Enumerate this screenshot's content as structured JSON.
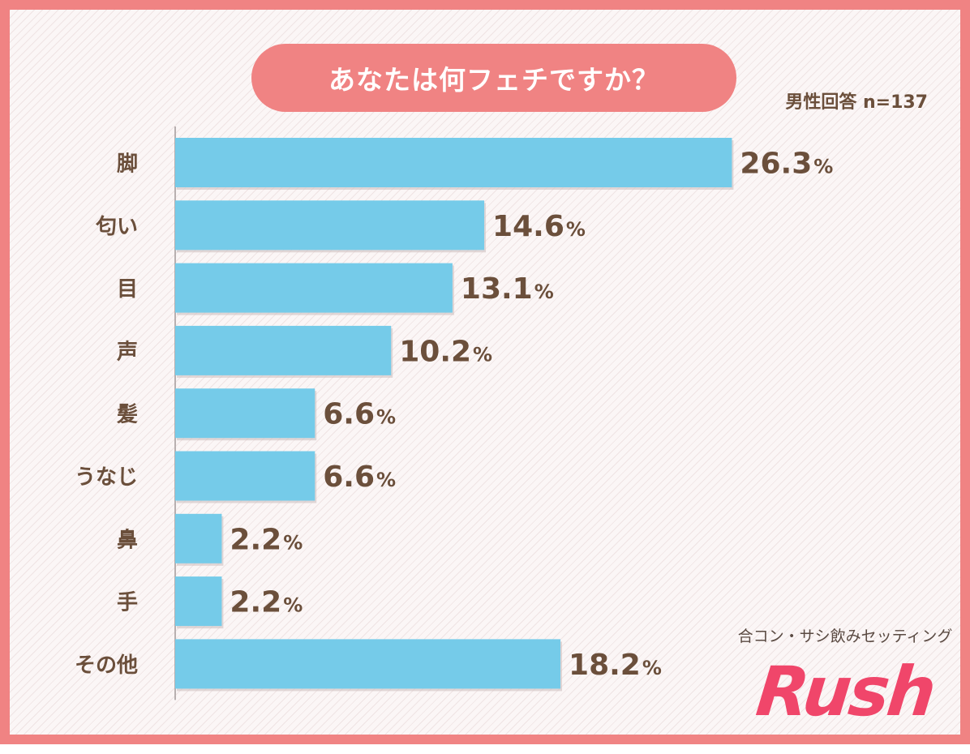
{
  "title": "あなたは何フェチですか？",
  "respondents": "男性回答 n=137",
  "brand": {
    "tagline": "合コン・サシ飲みセッティング",
    "logo": "Rush",
    "logo_color": "#f0466a"
  },
  "colors": {
    "frame": "#f08383",
    "bar": "#75cbe9",
    "text": "#6b4f3b"
  },
  "chart_data": {
    "type": "bar",
    "orientation": "horizontal",
    "categories": [
      "脚",
      "匂い",
      "目",
      "声",
      "髪",
      "うなじ",
      "鼻",
      "手",
      "その他"
    ],
    "values": [
      26.3,
      14.6,
      13.1,
      10.2,
      6.6,
      6.6,
      2.2,
      2.2,
      18.2
    ],
    "value_labels": [
      "26.3",
      "14.6",
      "13.1",
      "10.2",
      "6.6",
      "6.6",
      "2.2",
      "2.2",
      "18.2"
    ],
    "unit": "%",
    "title": "あなたは何フェチですか？",
    "grid": false,
    "legend": "none"
  }
}
